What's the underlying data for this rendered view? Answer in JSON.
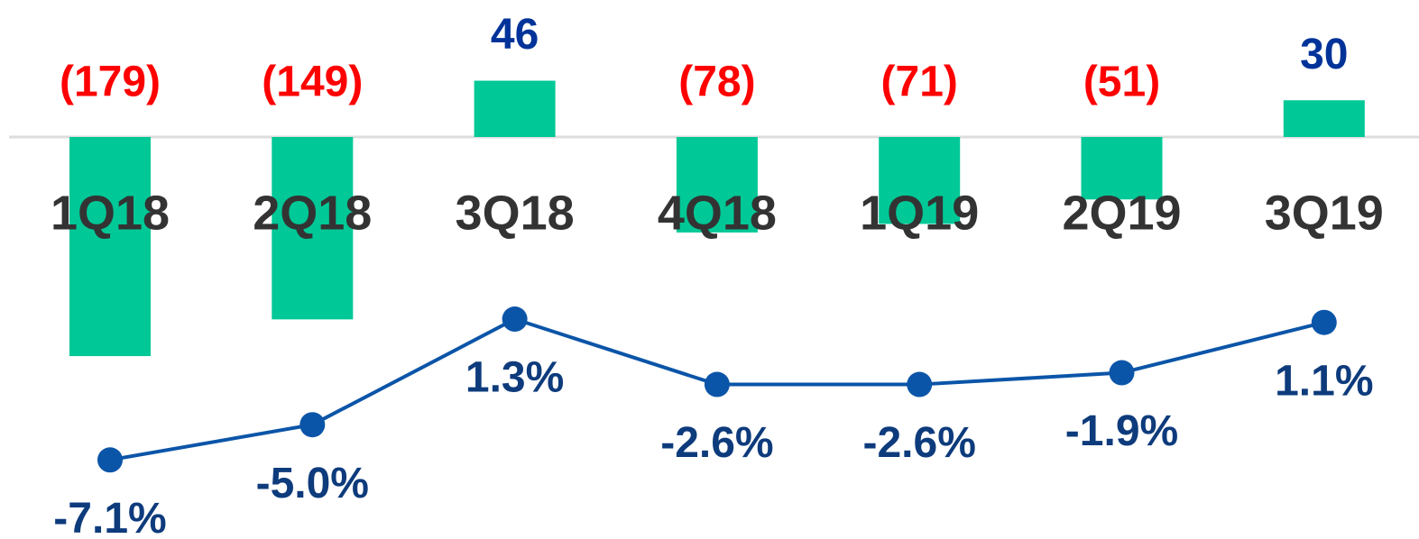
{
  "chart_data": {
    "type": "bar",
    "categories": [
      "1Q18",
      "2Q18",
      "3Q18",
      "4Q18",
      "1Q19",
      "2Q19",
      "3Q19"
    ],
    "series": [
      {
        "type": "bar",
        "color": "#00c897",
        "values": [
          -179,
          -149,
          46,
          -78,
          -71,
          -51,
          30
        ],
        "value_labels": [
          "(179)",
          "(149)",
          "46",
          "(78)",
          "(71)",
          "(51)",
          "30"
        ],
        "label_colors": {
          "negative": "#ff0000",
          "positive": "#003399"
        }
      },
      {
        "type": "line",
        "color": "#0b55a8",
        "label_color": "#0d3b7c",
        "values": [
          -7.1,
          -5.0,
          1.3,
          -2.6,
          -2.6,
          -1.9,
          1.1
        ],
        "value_labels": [
          "-7.1%",
          "-5.0%",
          "1.3%",
          "-2.6%",
          "-2.6%",
          "-1.9%",
          "1.1%"
        ]
      }
    ]
  }
}
